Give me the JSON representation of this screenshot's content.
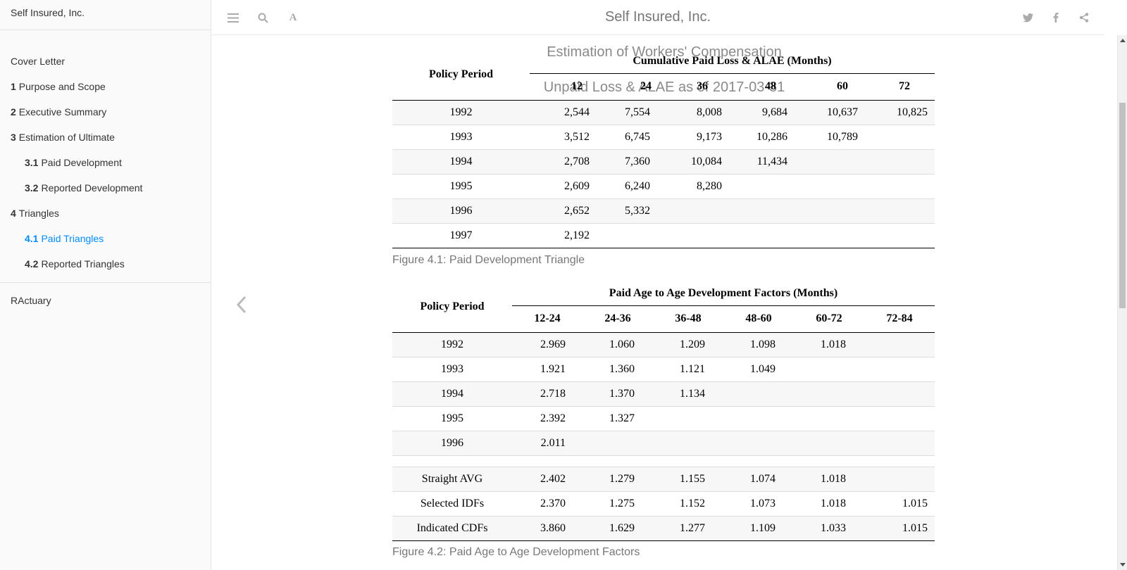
{
  "sidebar": {
    "brand": "Self Insured, Inc.",
    "toc": [
      {
        "num": "",
        "label": "Cover Letter"
      },
      {
        "num": "1",
        "label": "Purpose and Scope"
      },
      {
        "num": "2",
        "label": "Executive Summary"
      },
      {
        "num": "3",
        "label": "Estimation of Ultimate"
      },
      {
        "num": "3.1",
        "label": "Paid Development"
      },
      {
        "num": "3.2",
        "label": "Reported Development"
      },
      {
        "num": "4",
        "label": "Triangles"
      },
      {
        "num": "4.1",
        "label": "Paid Triangles"
      },
      {
        "num": "4.2",
        "label": "Reported Triangles"
      }
    ],
    "extra": [
      {
        "label": "RActuary"
      }
    ]
  },
  "header": {
    "title": "Self Insured, Inc.",
    "icons": [
      "menu-icon",
      "search-icon",
      "font-icon",
      "twitter-icon",
      "facebook-icon",
      "share-icon"
    ]
  },
  "doc": {
    "ghost_title_1": "Estimation of Workers' Compensation",
    "ghost_title_2": "Unpaid Loss & ALAE as of 2017-03-31"
  },
  "table1": {
    "row_header": "Policy Period",
    "group_header": "Cumulative Paid Loss & ALAE (Months)",
    "columns": [
      "12",
      "24",
      "36",
      "48",
      "60",
      "72"
    ],
    "rows": [
      {
        "period": "1992",
        "values": [
          "2,544",
          "7,554",
          "8,008",
          "9,684",
          "10,637",
          "10,825"
        ]
      },
      {
        "period": "1993",
        "values": [
          "3,512",
          "6,745",
          "9,173",
          "10,286",
          "10,789",
          ""
        ]
      },
      {
        "period": "1994",
        "values": [
          "2,708",
          "7,360",
          "10,084",
          "11,434",
          "",
          ""
        ]
      },
      {
        "period": "1995",
        "values": [
          "2,609",
          "6,240",
          "8,280",
          "",
          "",
          ""
        ]
      },
      {
        "period": "1996",
        "values": [
          "2,652",
          "5,332",
          "",
          "",
          "",
          ""
        ]
      },
      {
        "period": "1997",
        "values": [
          "2,192",
          "",
          "",
          "",
          "",
          ""
        ]
      }
    ],
    "caption": "Figure 4.1: Paid Development Triangle"
  },
  "table2": {
    "row_header": "Policy Period",
    "group_header": "Paid Age to Age Development Factors (Months)",
    "columns": [
      "12-24",
      "24-36",
      "36-48",
      "48-60",
      "60-72",
      "72-84"
    ],
    "rows": [
      {
        "period": "1992",
        "values": [
          "2.969",
          "1.060",
          "1.209",
          "1.098",
          "1.018",
          ""
        ]
      },
      {
        "period": "1993",
        "values": [
          "1.921",
          "1.360",
          "1.121",
          "1.049",
          "",
          ""
        ]
      },
      {
        "period": "1994",
        "values": [
          "2.718",
          "1.370",
          "1.134",
          "",
          "",
          ""
        ]
      },
      {
        "period": "1995",
        "values": [
          "2.392",
          "1.327",
          "",
          "",
          "",
          ""
        ]
      },
      {
        "period": "1996",
        "values": [
          "2.011",
          "",
          "",
          "",
          "",
          ""
        ]
      }
    ],
    "summary": [
      {
        "period": "Straight AVG",
        "values": [
          "2.402",
          "1.279",
          "1.155",
          "1.074",
          "1.018",
          ""
        ]
      },
      {
        "period": "Selected IDFs",
        "values": [
          "2.370",
          "1.275",
          "1.152",
          "1.073",
          "1.018",
          "1.015"
        ]
      },
      {
        "period": "Indicated CDFs",
        "values": [
          "3.860",
          "1.629",
          "1.277",
          "1.109",
          "1.033",
          "1.015"
        ]
      }
    ],
    "caption": "Figure 4.2: Paid Age to Age Development Factors"
  }
}
